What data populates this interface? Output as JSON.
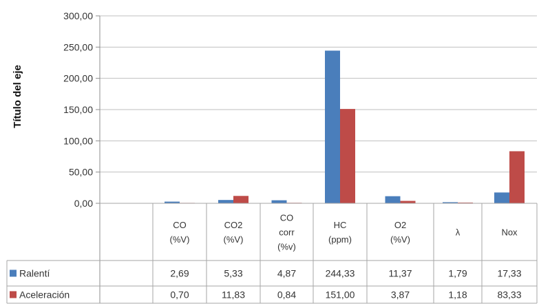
{
  "chart_data": {
    "type": "bar",
    "title": "",
    "xlabel": "",
    "ylabel": "Título del eje",
    "ylim": [
      0,
      300
    ],
    "y_ticks": [
      "0,00",
      "50,00",
      "100,00",
      "150,00",
      "200,00",
      "250,00",
      "300,00"
    ],
    "categories": [
      [
        "CO",
        "(%V)"
      ],
      [
        "CO2",
        "(%V)"
      ],
      [
        "CO",
        "corr",
        "(%v)"
      ],
      [
        "HC",
        "(ppm)"
      ],
      [
        "O2",
        "(%V)"
      ],
      [
        "λ"
      ],
      [
        "Nox"
      ]
    ],
    "series": [
      {
        "name": "Ralentí",
        "color": "#4a7ebb",
        "values": [
          2.69,
          5.33,
          4.87,
          244.33,
          11.37,
          1.79,
          17.33
        ],
        "labels": [
          "2,69",
          "5,33",
          "4,87",
          "244,33",
          "11,37",
          "1,79",
          "17,33"
        ]
      },
      {
        "name": "Aceleración",
        "color": "#be4b48",
        "values": [
          0.7,
          11.83,
          0.84,
          151.0,
          3.87,
          1.18,
          83.33
        ],
        "labels": [
          "0,70",
          "11,83",
          "0,84",
          "151,00",
          "3,87",
          "1,18",
          "83,33"
        ]
      }
    ],
    "grid": true,
    "legend": "data-table"
  }
}
